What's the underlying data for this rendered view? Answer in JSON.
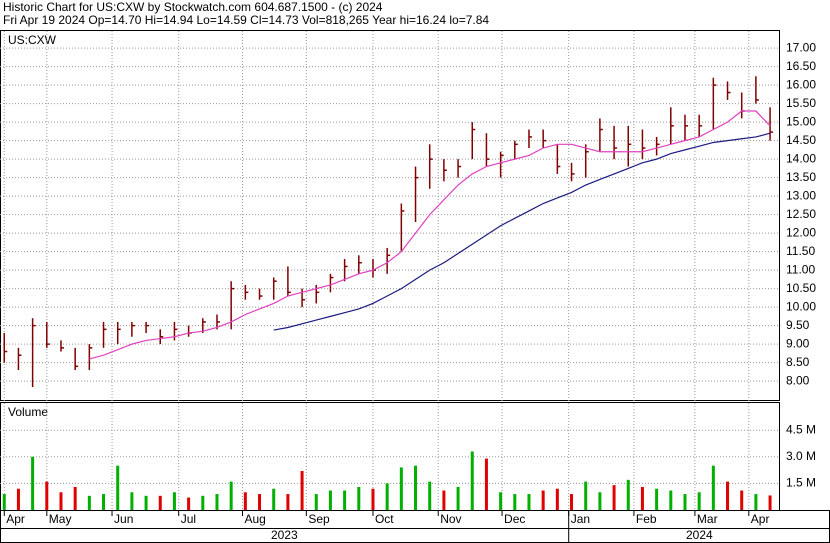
{
  "header": {
    "line1": "Historic Chart for US:CXW by Stockwatch.com 604.687.1500 - (c) 2024",
    "line2": "Fri Apr 19 2024  Op=14.70  Hi=14.94  Lo=14.59  Cl=14.73  Vol=818,265  Year hi=16.24  lo=7.84"
  },
  "chart_data": [
    {
      "type": "ohlc",
      "title": "US:CXW",
      "color": "#800000",
      "grid": true,
      "x": [
        0,
        1,
        2,
        3,
        4,
        5,
        6,
        7,
        8,
        9,
        10,
        11,
        12,
        13,
        14,
        15,
        16,
        17,
        18,
        19,
        20,
        21,
        22,
        23,
        24,
        25,
        26,
        27,
        28,
        29,
        30,
        31,
        32,
        33,
        34,
        35,
        36,
        37,
        38,
        39,
        40,
        41,
        42,
        43,
        44,
        45,
        46,
        47,
        48,
        49,
        50,
        51,
        52,
        53,
        54
      ],
      "high": [
        9.3,
        8.9,
        9.7,
        9.6,
        9.1,
        8.9,
        9.0,
        9.6,
        9.6,
        9.6,
        9.6,
        9.4,
        9.6,
        9.5,
        9.7,
        9.8,
        10.7,
        10.6,
        10.5,
        10.8,
        11.1,
        10.5,
        10.6,
        10.9,
        11.3,
        11.4,
        11.3,
        11.6,
        12.8,
        13.8,
        14.4,
        14.0,
        14.0,
        15.0,
        14.7,
        14.2,
        14.5,
        14.8,
        14.8,
        14.4,
        13.9,
        14.4,
        15.1,
        14.9,
        14.9,
        14.8,
        14.6,
        15.4,
        15.2,
        15.2,
        16.2,
        16.1,
        15.8,
        16.24,
        15.4
      ],
      "low": [
        8.5,
        8.3,
        7.84,
        8.9,
        8.8,
        8.3,
        8.3,
        8.9,
        9.0,
        9.2,
        9.3,
        9.0,
        9.1,
        9.2,
        9.3,
        9.4,
        9.4,
        10.2,
        10.2,
        10.2,
        10.3,
        10.0,
        10.1,
        10.4,
        10.7,
        10.9,
        10.8,
        10.9,
        11.5,
        12.3,
        13.2,
        13.4,
        13.5,
        14.0,
        13.8,
        13.5,
        14.0,
        14.3,
        14.3,
        13.6,
        13.4,
        13.5,
        14.2,
        14.0,
        13.8,
        14.0,
        14.1,
        14.4,
        14.5,
        14.6,
        14.8,
        15.6,
        15.1,
        15.5,
        14.5
      ],
      "close": [
        8.8,
        8.7,
        9.5,
        9.0,
        8.9,
        8.4,
        8.9,
        9.4,
        9.4,
        9.5,
        9.5,
        9.2,
        9.4,
        9.3,
        9.6,
        9.6,
        10.5,
        10.4,
        10.3,
        10.7,
        10.4,
        10.2,
        10.4,
        10.8,
        11.1,
        11.2,
        11.0,
        11.4,
        12.6,
        13.5,
        14.0,
        13.7,
        13.8,
        14.8,
        14.0,
        14.1,
        14.4,
        14.6,
        14.5,
        13.8,
        13.6,
        14.2,
        14.8,
        14.3,
        14.4,
        14.3,
        14.4,
        14.9,
        14.9,
        14.9,
        16.0,
        15.8,
        15.3,
        15.6,
        14.73
      ],
      "series": [
        {
          "color": "#e040c0",
          "values": [
            null,
            null,
            null,
            null,
            null,
            null,
            8.6,
            8.7,
            8.85,
            9.0,
            9.1,
            9.15,
            9.2,
            9.3,
            9.35,
            9.45,
            9.6,
            9.8,
            9.95,
            10.1,
            10.3,
            10.4,
            10.5,
            10.6,
            10.75,
            10.9,
            11.0,
            11.2,
            11.5,
            12.0,
            12.5,
            12.9,
            13.3,
            13.6,
            13.8,
            13.9,
            14.0,
            14.1,
            14.3,
            14.4,
            14.4,
            14.3,
            14.2,
            14.2,
            14.2,
            14.2,
            14.3,
            14.4,
            14.5,
            14.6,
            14.8,
            15.0,
            15.3,
            15.3,
            14.9
          ]
        },
        {
          "color": "#1a1a80",
          "values": [
            null,
            null,
            null,
            null,
            null,
            null,
            null,
            null,
            null,
            null,
            null,
            null,
            null,
            null,
            null,
            null,
            null,
            null,
            null,
            9.38,
            9.45,
            9.55,
            9.65,
            9.75,
            9.85,
            9.95,
            10.1,
            10.3,
            10.5,
            10.75,
            11.0,
            11.2,
            11.45,
            11.7,
            11.95,
            12.2,
            12.4,
            12.6,
            12.8,
            12.95,
            13.1,
            13.3,
            13.45,
            13.6,
            13.75,
            13.9,
            14.0,
            14.15,
            14.25,
            14.35,
            14.45,
            14.5,
            14.55,
            14.6,
            14.7
          ]
        }
      ],
      "xlim": [
        -0.3,
        54.7
      ],
      "ylim": [
        7.49,
        17.49
      ],
      "yticks": [
        {
          "value": 8,
          "label": "8.00"
        },
        {
          "value": 8.5,
          "label": "8.50"
        },
        {
          "value": 9,
          "label": "9.00"
        },
        {
          "value": 9.5,
          "label": "9.50"
        },
        {
          "value": 10,
          "label": "10.00"
        },
        {
          "value": 10.5,
          "label": "10.50"
        },
        {
          "value": 11,
          "label": "11.00"
        },
        {
          "value": 11.5,
          "label": "11.50"
        },
        {
          "value": 12,
          "label": "12.00"
        },
        {
          "value": 12.5,
          "label": "12.50"
        },
        {
          "value": 13,
          "label": "13.00"
        },
        {
          "value": 13.5,
          "label": "13.50"
        },
        {
          "value": 14,
          "label": "14.00"
        },
        {
          "value": 14.5,
          "label": "14.50"
        },
        {
          "value": 15,
          "label": "15.00"
        },
        {
          "value": 15.5,
          "label": "15.50"
        },
        {
          "value": 16,
          "label": "16.00"
        },
        {
          "value": 16.5,
          "label": "16.50"
        },
        {
          "value": 17,
          "label": "17.00"
        }
      ],
      "xticks": [
        {
          "value": 0,
          "label": "Apr"
        },
        {
          "value": 3,
          "label": "May"
        },
        {
          "value": 7.6,
          "label": "Jun"
        },
        {
          "value": 12.3,
          "label": "Jul"
        },
        {
          "value": 16.8,
          "label": "Aug"
        },
        {
          "value": 21.3,
          "label": "Sep"
        },
        {
          "value": 26,
          "label": "Oct"
        },
        {
          "value": 30.6,
          "label": "Nov"
        },
        {
          "value": 35.1,
          "label": "Dec"
        },
        {
          "value": 39.8,
          "label": "Jan"
        },
        {
          "value": 44.4,
          "label": "Feb"
        },
        {
          "value": 48.7,
          "label": "Mar"
        },
        {
          "value": 52.5,
          "label": "Apr"
        }
      ],
      "year_labels": [
        {
          "value": -0.3,
          "label": "2023"
        },
        {
          "value": 39.8,
          "label": "2024"
        }
      ]
    },
    {
      "type": "bar",
      "title": "Volume",
      "up_color": "#00b000",
      "down_color": "#e00000",
      "values": [
        0.9,
        1.2,
        3.0,
        1.6,
        1.0,
        1.3,
        0.8,
        0.9,
        2.5,
        1.0,
        0.8,
        0.8,
        1.0,
        0.7,
        0.8,
        0.9,
        1.6,
        1.0,
        0.9,
        1.2,
        0.9,
        2.2,
        0.9,
        1.1,
        1.1,
        1.3,
        1.2,
        1.5,
        2.4,
        2.5,
        1.6,
        1.1,
        1.3,
        3.3,
        2.9,
        1.0,
        0.9,
        0.9,
        1.1,
        1.2,
        0.9,
        1.6,
        1.0,
        1.4,
        1.7,
        1.3,
        1.2,
        1.1,
        0.9,
        1.0,
        2.5,
        1.6,
        1.1,
        0.9,
        0.82
      ],
      "ylim": [
        0,
        6.09
      ],
      "yticks": [
        {
          "value": 1.5,
          "label": "1.5 M"
        },
        {
          "value": 3,
          "label": "3.0 M"
        },
        {
          "value": 4.5,
          "label": "4.5 M"
        }
      ]
    }
  ]
}
